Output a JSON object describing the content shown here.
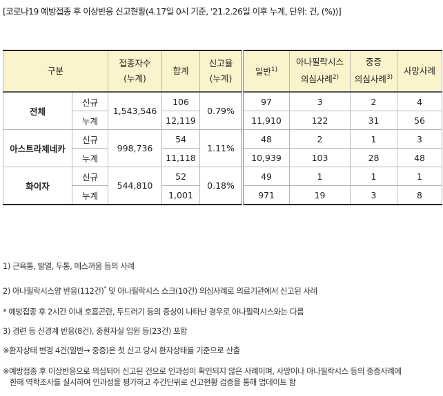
{
  "title": "[코로나19 예방접종 후 이상반응 신고현황(4.17일 0시 기준, '21.2.26일 이후 누계, 단위: 건, (%))]",
  "headers": {
    "group": "구분",
    "vaccinated_1": "접종자수",
    "vaccinated_2": "(누계)",
    "total": "합계",
    "rate_1": "신고율",
    "rate_2": "(누계)",
    "general": "일반",
    "general_sup": "1)",
    "anaph_1": "아나필락시스",
    "anaph_2": "의심사례",
    "anaph_sup": "2)",
    "severe_1": "중증",
    "severe_2": "의심사례",
    "severe_sup": "3)",
    "death": "사망사례"
  },
  "rows": [
    {
      "name": "전체",
      "vaccinated": "1,543,546",
      "rate": "0.79%",
      "new": {
        "label": "신규",
        "total": "106",
        "general": "97",
        "anaph": "3",
        "severe": "2",
        "death": "4"
      },
      "cumul": {
        "label": "누계",
        "total": "12,119",
        "general": "11,910",
        "anaph": "122",
        "severe": "31",
        "death": "56"
      }
    },
    {
      "name": "아스트라제네카",
      "vaccinated": "998,736",
      "rate": "1.11%",
      "new": {
        "label": "신규",
        "total": "54",
        "general": "48",
        "anaph": "2",
        "severe": "1",
        "death": "3"
      },
      "cumul": {
        "label": "누계",
        "total": "11,118",
        "general": "10,939",
        "anaph": "103",
        "severe": "28",
        "death": "48"
      }
    },
    {
      "name": "화이자",
      "vaccinated": "544,810",
      "rate": "0.18%",
      "new": {
        "label": "신규",
        "total": "52",
        "general": "49",
        "anaph": "1",
        "severe": "1",
        "death": "1"
      },
      "cumul": {
        "label": "누계",
        "total": "1,001",
        "general": "971",
        "anaph": "19",
        "severe": "3",
        "death": "8"
      }
    }
  ],
  "notes": {
    "n1": "1) 근육통, 발열, 두통, 메스꺼움 등의 사례",
    "n2a": "2) 아나필락시스양 반응(112건)",
    "n2sup": "*",
    "n2b": " 및 아나필락시스 쇼크(10건) 의심사례로 의료기관에서 신고된 사례",
    "n_star": "* 예방접종 후 2시간 이내 호흡곤란, 두드러기 등의 증상이 나타난 경우로 아나필락시스와는 다름",
    "n3": "3) 경련 등 신경계 반응(8건), 중환자실 입원 등(23건) 포함",
    "n_status": "※환자상태 변경 4건(일반→ 중증)은 첫 신고 당시 환자상태를 기준으로 산출",
    "n_final_1": "※예방접종 후 이상반응으로 의심되어 신고된 건으로 인과성이 확인되지 않은 사례이며, 사망이나 아나필락시스 등의 중증사례에",
    "n_final_2": "한해 역학조사를 실시하여 인과성을 평가하고 주간단위로 신고현황 검증을 통해 업데이트 함"
  }
}
